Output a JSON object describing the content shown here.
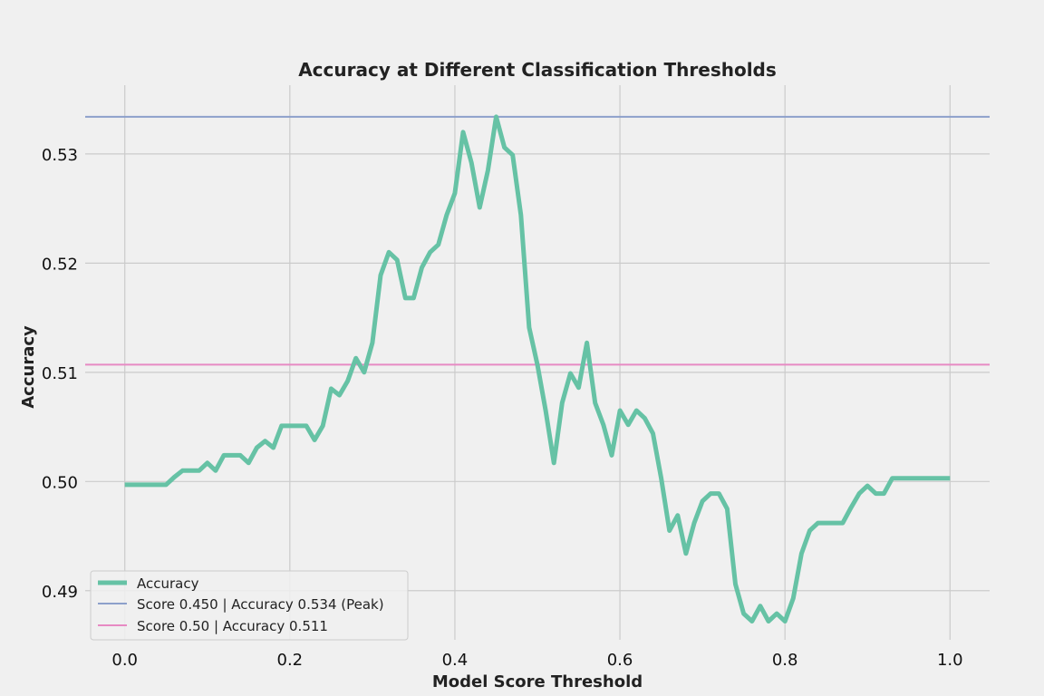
{
  "chart_data": {
    "type": "line",
    "title": "Accuracy at Different Classification Thresholds",
    "xlabel": "Model Score Threshold",
    "ylabel": "Accuracy",
    "xlim": [
      -0.048,
      1.048
    ],
    "ylim": [
      0.4855,
      0.5363
    ],
    "xticks": [
      0.0,
      0.2,
      0.4,
      0.6,
      0.8,
      1.0
    ],
    "xtick_labels": [
      "0.0",
      "0.2",
      "0.4",
      "0.6",
      "0.8",
      "1.0"
    ],
    "yticks": [
      0.49,
      0.5,
      0.51,
      0.52,
      0.53
    ],
    "ytick_labels": [
      "0.49",
      "0.50",
      "0.51",
      "0.52",
      "0.53"
    ],
    "grid": true,
    "legend_position": "lower-left",
    "series": [
      {
        "name": "Accuracy",
        "color": "#66c2a5",
        "x": [
          0.0,
          0.01,
          0.02,
          0.03,
          0.04,
          0.05,
          0.06,
          0.07,
          0.08,
          0.09,
          0.1,
          0.11,
          0.12,
          0.13,
          0.14,
          0.15,
          0.16,
          0.17,
          0.18,
          0.19,
          0.2,
          0.21,
          0.22,
          0.23,
          0.24,
          0.25,
          0.26,
          0.27,
          0.28,
          0.29,
          0.3,
          0.31,
          0.32,
          0.33,
          0.34,
          0.35,
          0.36,
          0.37,
          0.38,
          0.39,
          0.4,
          0.41,
          0.42,
          0.43,
          0.44,
          0.45,
          0.46,
          0.47,
          0.48,
          0.49,
          0.5,
          0.51,
          0.52,
          0.53,
          0.54,
          0.55,
          0.56,
          0.57,
          0.58,
          0.59,
          0.6,
          0.61,
          0.62,
          0.63,
          0.64,
          0.65,
          0.66,
          0.67,
          0.68,
          0.69,
          0.7,
          0.71,
          0.72,
          0.73,
          0.74,
          0.75,
          0.76,
          0.77,
          0.78,
          0.79,
          0.8,
          0.81,
          0.82,
          0.83,
          0.84,
          0.85,
          0.86,
          0.87,
          0.88,
          0.89,
          0.9,
          0.91,
          0.92,
          0.93,
          0.94,
          0.95,
          0.96,
          0.97,
          0.98,
          0.99,
          1.0
        ],
        "y": [
          0.4997,
          0.4997,
          0.4997,
          0.4997,
          0.4997,
          0.4997,
          0.5004,
          0.501,
          0.501,
          0.501,
          0.5017,
          0.501,
          0.5024,
          0.5024,
          0.5024,
          0.5017,
          0.5031,
          0.5037,
          0.5031,
          0.5051,
          0.5051,
          0.5051,
          0.5051,
          0.5038,
          0.5051,
          0.5085,
          0.5079,
          0.5092,
          0.5113,
          0.51,
          0.5127,
          0.5189,
          0.521,
          0.5203,
          0.5168,
          0.5168,
          0.5196,
          0.521,
          0.5217,
          0.5244,
          0.5264,
          0.532,
          0.5292,
          0.5251,
          0.5285,
          0.5334,
          0.5306,
          0.5299,
          0.5244,
          0.5141,
          0.5107,
          0.5065,
          0.5017,
          0.5072,
          0.5099,
          0.5086,
          0.5127,
          0.5072,
          0.5052,
          0.5024,
          0.5065,
          0.5052,
          0.5065,
          0.5058,
          0.5044,
          0.5003,
          0.4955,
          0.4969,
          0.4934,
          0.4962,
          0.4982,
          0.4989,
          0.4989,
          0.4975,
          0.4906,
          0.4879,
          0.4872,
          0.4886,
          0.4872,
          0.4879,
          0.4872,
          0.4893,
          0.4934,
          0.4955,
          0.4962,
          0.4962,
          0.4962,
          0.4962,
          0.4976,
          0.4989,
          0.4996,
          0.4989,
          0.4989,
          0.5003,
          0.5003,
          0.5003,
          0.5003,
          0.5003,
          0.5003,
          0.5003,
          0.5003
        ]
      },
      {
        "name": "Score 0.450 | Accuracy 0.534 (Peak)",
        "color": "#8da0cb",
        "type": "hline",
        "y": 0.5334
      },
      {
        "name": "Score 0.50 | Accuracy 0.511",
        "color": "#e78ac3",
        "type": "hline",
        "y": 0.5107
      }
    ]
  }
}
